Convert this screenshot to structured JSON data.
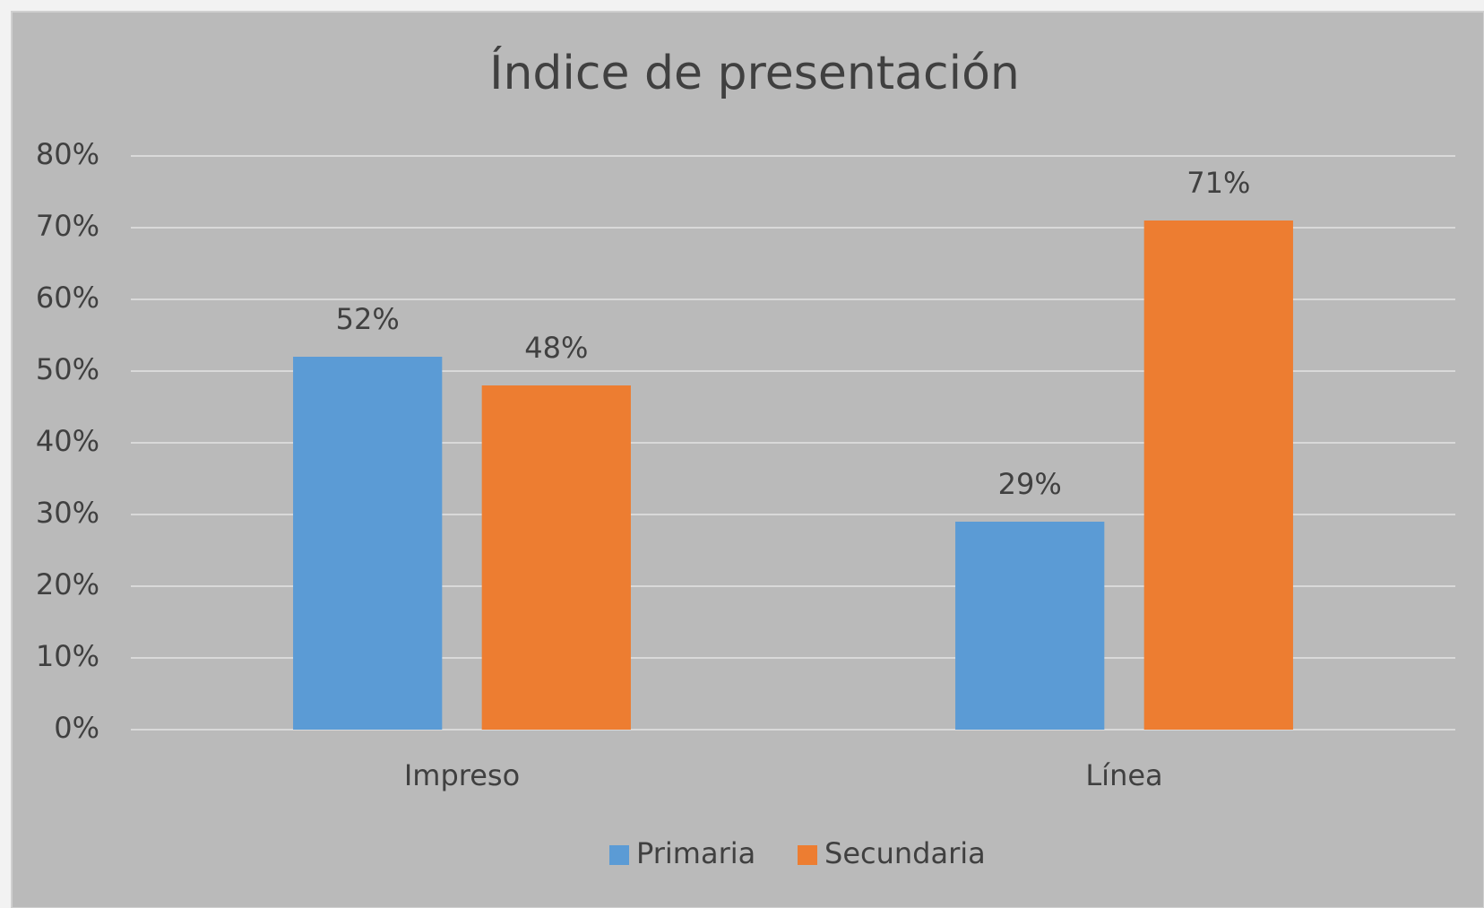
{
  "chart_data": {
    "type": "bar",
    "title": "Índice de presentación",
    "categories": [
      "Impreso",
      "Línea"
    ],
    "series": [
      {
        "name": "Primaria",
        "color": "#5b9bd5",
        "values": [
          52,
          29
        ],
        "value_labels": [
          "52%",
          "29%"
        ]
      },
      {
        "name": "Secundaria",
        "color": "#ed7d31",
        "values": [
          48,
          71
        ],
        "value_labels": [
          "48%",
          "71%"
        ]
      }
    ],
    "ylim": [
      0,
      80
    ],
    "yticks": [
      {
        "value": 0,
        "label": "0%"
      },
      {
        "value": 10,
        "label": "10%"
      },
      {
        "value": 20,
        "label": "20%"
      },
      {
        "value": 30,
        "label": "30%"
      },
      {
        "value": 40,
        "label": "40%"
      },
      {
        "value": 50,
        "label": "50%"
      },
      {
        "value": 60,
        "label": "60%"
      },
      {
        "value": 70,
        "label": "70%"
      },
      {
        "value": 80,
        "label": "80%"
      }
    ],
    "grid": true,
    "legend": "bottom"
  }
}
